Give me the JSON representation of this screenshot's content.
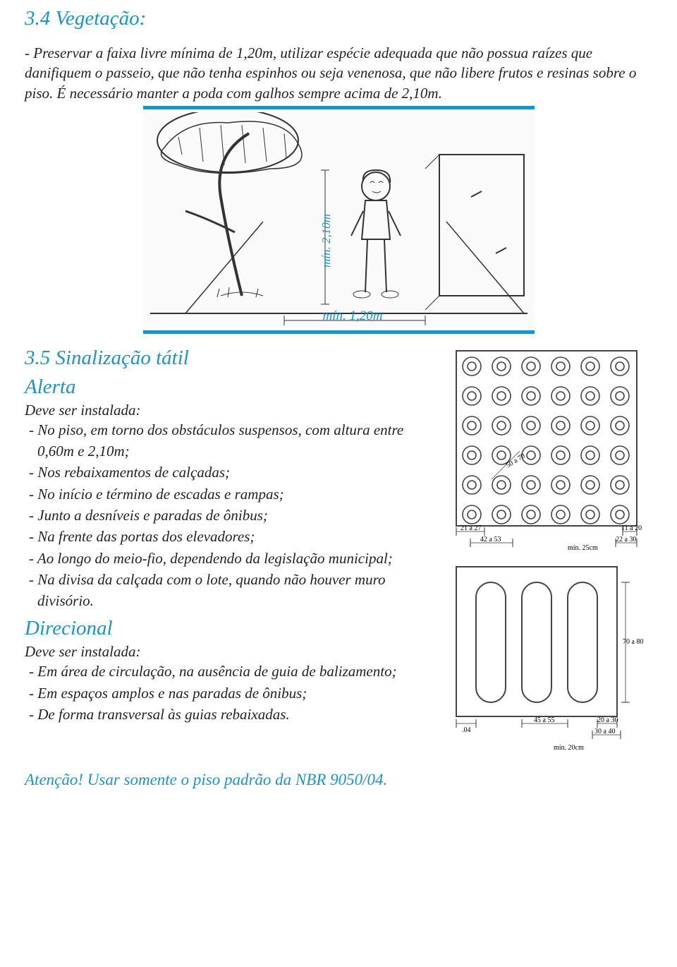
{
  "section34": {
    "heading": "3.4 Vegetação:",
    "paragraph": "- Preservar a faixa livre mínima de 1,20m, utilizar espécie adequada que não possua raízes que danifiquem o passeio, que não tenha espinhos ou seja venenosa, que não libere frutos e resinas sobre o piso. É necessário manter a poda com galhos sempre acima de 2,10m.",
    "figure": {
      "dim_vertical": "mín. 2,10m",
      "dim_horizontal": "mín. 1,20m",
      "line_color": "#2191c0",
      "line_width": 5
    }
  },
  "section35": {
    "heading": "3.5 Sinalização tátil",
    "alerta": {
      "title": "Alerta",
      "intro": "Deve ser instalada:",
      "items": [
        "- No piso, em torno dos obstáculos suspensos, com altura entre 0,60m e 2,10m;",
        "- Nos rebaixamentos de calçadas;",
        "- No início e término de escadas e rampas;",
        "- Junto a desníveis e paradas de ônibus;",
        "- Na frente das portas dos elevadores;",
        "- Ao longo do meio-fio, dependendo da legislação municipal;",
        "- Na divisa da calçada com o lote, quando não houver muro divisório."
      ]
    },
    "direcional": {
      "title": "Direcional",
      "intro": "Deve ser instalada:",
      "items": [
        "- Em área de circulação, na ausência de guia de balizamento;",
        "- Em espaços amplos e nas paradas de ônibus;",
        "- De forma transversal às guias rebaixadas."
      ]
    },
    "tactile_alert": {
      "grid_size": 6,
      "diag_label": "50 a 70",
      "dims_bottom_left": "21 a 27",
      "dims_bottom_right": "11 a 20",
      "dims_below_left": "42 a 53",
      "dims_below_right": "22 a 30",
      "dims_min": "mín. 25cm",
      "stroke": "#555555",
      "tile_border": "#444"
    },
    "tactile_directional": {
      "bars": 3,
      "dims_right": "70 a 80",
      "dims_bl1": ".04",
      "dims_bl2": "45 a 55",
      "dims_br1": "20 a 30",
      "dims_br2": "30 a 40",
      "dims_min": "mín. 20cm",
      "stroke": "#555555"
    }
  },
  "attention": "Atenção! Usar somente o piso padrão da NBR 9050/04.",
  "colors": {
    "accent": "#2191c0",
    "text": "#222222",
    "bg": "#ffffff"
  }
}
